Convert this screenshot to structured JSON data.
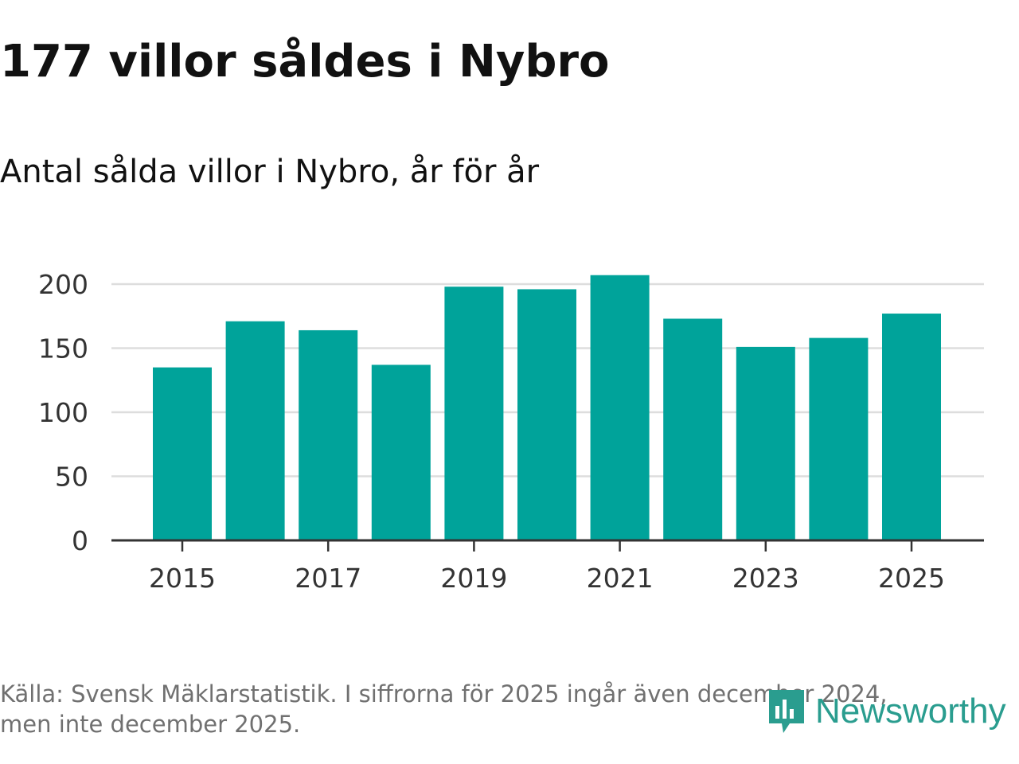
{
  "header": {
    "title": "177 villor såldes i Nybro",
    "subtitle": "Antal sålda villor i Nybro, år för år"
  },
  "chart_data": {
    "type": "bar",
    "title": "177 villor såldes i Nybro",
    "subtitle": "Antal sålda villor i Nybro, år för år",
    "xlabel": "",
    "ylabel": "",
    "categories": [
      "2015",
      "2016",
      "2017",
      "2018",
      "2019",
      "2020",
      "2021",
      "2022",
      "2023",
      "2024",
      "2025"
    ],
    "values": [
      135,
      171,
      164,
      137,
      198,
      196,
      207,
      173,
      151,
      158,
      177
    ],
    "x_tick_labels": [
      "2015",
      "2017",
      "2019",
      "2021",
      "2023",
      "2025"
    ],
    "y_ticks": [
      0,
      50,
      100,
      150,
      200
    ],
    "y_tick_labels": [
      "0",
      "50",
      "100",
      "150",
      "200"
    ],
    "ylim": [
      0,
      200
    ],
    "grid": true,
    "legend": "none",
    "bar_color": "#00a39a",
    "grid_color": "#dddddd",
    "axis_color": "#333333"
  },
  "footer": {
    "source_line1": "Källa: Svensk Mäklarstatistik. I siffrorna för 2025 ingår även december 2024,",
    "source_line2": "men inte december 2025."
  },
  "brand": {
    "name": "Newsworthy",
    "icon": "newsworthy-logo-icon",
    "color": "#2a9d8f"
  }
}
